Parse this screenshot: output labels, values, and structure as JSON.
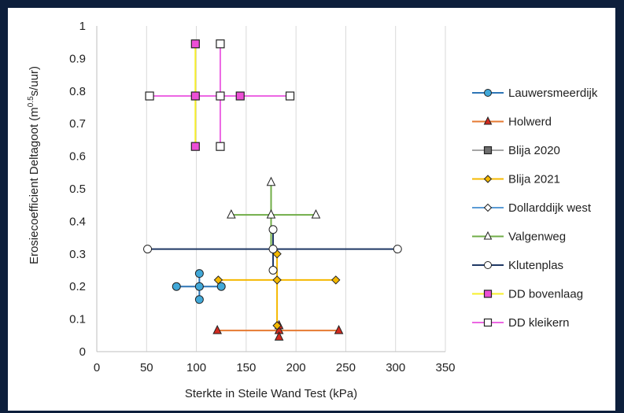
{
  "chart_data": {
    "type": "scatter",
    "xlabel": "Sterkte in Steile Wand Test (kPa)",
    "ylabel": "Erosiecoefficient Deltagoot (m^0.5s/uur)",
    "ylabel_parts": {
      "pre": "Erosiecoefficient Deltagoot (m",
      "sup": "0.5",
      "post": "s/uur)"
    },
    "xlim": [
      0,
      350
    ],
    "ylim": [
      0,
      1
    ],
    "xticks": [
      "0",
      "50",
      "100",
      "150",
      "200",
      "250",
      "300",
      "350"
    ],
    "yticks": [
      "0",
      "0.1",
      "0.2",
      "0.3",
      "0.4",
      "0.5",
      "0.6",
      "0.7",
      "0.8",
      "0.9",
      "1"
    ],
    "grid": "vertical",
    "legend_position": "right",
    "series": [
      {
        "name": "Lauwersmeerdijk",
        "color": "#2e75b6",
        "marker": "circle",
        "marker_fill": "#41a8d8",
        "lines": [
          [
            [
              80,
              0.2
            ],
            [
              125,
              0.2
            ]
          ],
          [
            [
              103,
              0.16
            ],
            [
              103,
              0.24
            ]
          ]
        ],
        "points": [
          [
            80,
            0.2
          ],
          [
            103,
            0.2
          ],
          [
            125,
            0.2
          ],
          [
            103,
            0.24
          ],
          [
            103,
            0.16
          ]
        ]
      },
      {
        "name": "Holwerd",
        "color": "#e67a32",
        "marker": "triangle",
        "marker_fill": "#d12a1f",
        "lines": [
          [
            [
              121,
              0.065
            ],
            [
              243,
              0.065
            ]
          ],
          [
            [
              183,
              0.045
            ],
            [
              183,
              0.08
            ]
          ]
        ],
        "points": [
          [
            121,
            0.065
          ],
          [
            183,
            0.065
          ],
          [
            243,
            0.065
          ],
          [
            183,
            0.045
          ],
          [
            183,
            0.08
          ]
        ]
      },
      {
        "name": "Blija 2020",
        "color": "#a5a5a5",
        "marker": "square",
        "marker_fill": "#6f6f6f",
        "lines": [],
        "points": []
      },
      {
        "name": "Blija 2021",
        "color": "#f5b800",
        "marker": "diamond",
        "marker_fill": "#f5b800",
        "lines": [
          [
            [
              122,
              0.22
            ],
            [
              240,
              0.22
            ]
          ],
          [
            [
              181,
              0.08
            ],
            [
              181,
              0.3
            ]
          ]
        ],
        "points": [
          [
            122,
            0.22
          ],
          [
            181,
            0.22
          ],
          [
            240,
            0.22
          ],
          [
            181,
            0.3
          ],
          [
            181,
            0.08
          ]
        ]
      },
      {
        "name": "Dollarddijk west",
        "color": "#5b9bd5",
        "marker": "diamond",
        "marker_fill": "#ffffff",
        "lines": [],
        "points": []
      },
      {
        "name": "Valgenweg",
        "color": "#70ad47",
        "marker": "triangle",
        "marker_fill": "#ffffff",
        "lines": [
          [
            [
              135,
              0.42
            ],
            [
              220,
              0.42
            ]
          ],
          [
            [
              175,
              0.31
            ],
            [
              175,
              0.52
            ]
          ]
        ],
        "points": [
          [
            135,
            0.42
          ],
          [
            175,
            0.42
          ],
          [
            220,
            0.42
          ],
          [
            175,
            0.52
          ]
        ]
      },
      {
        "name": "Klutenplas",
        "color": "#1f3864",
        "marker": "circle",
        "marker_fill": "#ffffff",
        "lines": [
          [
            [
              51,
              0.315
            ],
            [
              302,
              0.315
            ]
          ],
          [
            [
              177,
              0.25
            ],
            [
              177,
              0.375
            ]
          ]
        ],
        "points": [
          [
            51,
            0.315
          ],
          [
            177,
            0.315
          ],
          [
            302,
            0.315
          ],
          [
            177,
            0.375
          ],
          [
            177,
            0.25
          ]
        ]
      },
      {
        "name": "DD bovenlaag",
        "color": "#f7ef2a",
        "marker": "square",
        "marker_fill": "#ec4fd5",
        "lines": [
          [
            [
              99,
              0.63
            ],
            [
              99,
              0.945
            ]
          ]
        ],
        "points": [
          [
            99,
            0.945
          ],
          [
            99,
            0.785
          ],
          [
            99,
            0.63
          ],
          [
            144,
            0.785
          ]
        ]
      },
      {
        "name": "DD kleikern",
        "color": "#ec66e3",
        "marker": "square",
        "marker_fill": "#ffffff",
        "lines": [
          [
            [
              53,
              0.785
            ],
            [
              194,
              0.785
            ]
          ],
          [
            [
              124,
              0.63
            ],
            [
              124,
              0.945
            ]
          ]
        ],
        "points": [
          [
            53,
            0.785
          ],
          [
            124,
            0.785
          ],
          [
            194,
            0.785
          ],
          [
            124,
            0.945
          ],
          [
            124,
            0.63
          ]
        ]
      }
    ]
  }
}
